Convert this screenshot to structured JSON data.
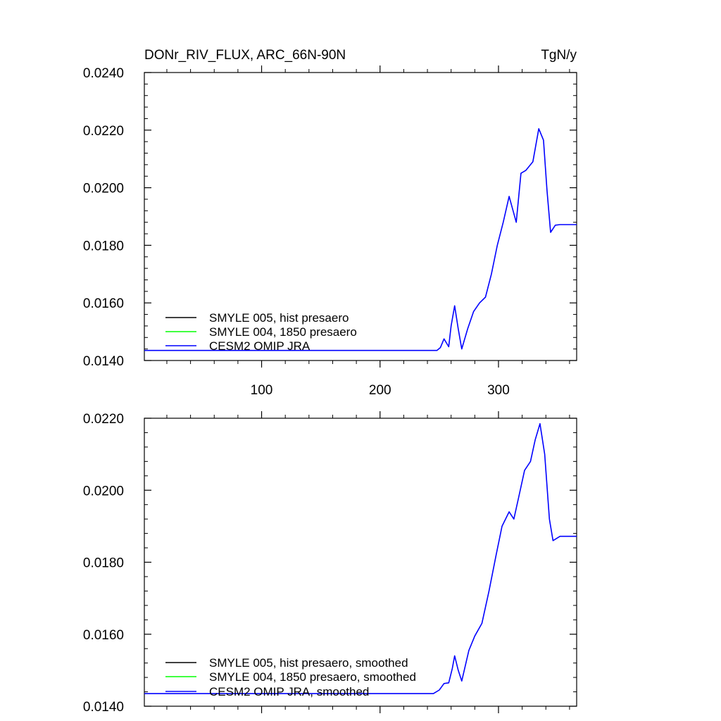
{
  "chart_data": [
    {
      "type": "line",
      "title": "DONr_RIV_FLUX, ARC_66N-90N",
      "units": "TgN/y",
      "xlim": [
        1,
        366
      ],
      "ylim": [
        0.014,
        0.024
      ],
      "xticks": [
        100,
        200,
        300
      ],
      "xtick_labels": [
        "100",
        "200",
        "300"
      ],
      "yticks": [
        0.014,
        0.016,
        0.018,
        0.02,
        0.022,
        0.024
      ],
      "ytick_labels": [
        "0.0140",
        "0.0160",
        "0.0180",
        "0.0200",
        "0.0220",
        "0.0240"
      ],
      "legend_position": "bottom-left",
      "x": [
        1,
        100,
        200,
        248,
        251,
        254,
        258,
        260,
        263,
        266,
        269,
        274,
        279,
        284,
        289,
        294,
        299,
        304,
        309,
        315,
        319,
        323,
        329,
        334,
        338,
        341,
        344,
        348,
        352,
        358,
        366
      ],
      "series": [
        {
          "name": "SMYLE 005, hist presaero",
          "color": "#000000",
          "values": null
        },
        {
          "name": "SMYLE 004, 1850 presaero",
          "color": "#00ff00",
          "values": null
        },
        {
          "name": "CESM2 OMIP JRA",
          "color": "#0000ff",
          "values": [
            0.01435,
            0.01435,
            0.01435,
            0.01435,
            0.01445,
            0.01475,
            0.01448,
            0.0152,
            0.0159,
            0.0151,
            0.0144,
            0.0151,
            0.0157,
            0.016,
            0.0162,
            0.017,
            0.018,
            0.0188,
            0.0197,
            0.0188,
            0.0205,
            0.0206,
            0.0209,
            0.02205,
            0.02165,
            0.0199,
            0.01845,
            0.0187,
            0.01872,
            0.01872,
            0.01872
          ]
        }
      ]
    },
    {
      "type": "line",
      "title": "",
      "units": "",
      "xlim": [
        1,
        366
      ],
      "ylim": [
        0.014,
        0.022
      ],
      "xticks": [
        100,
        200,
        300
      ],
      "xtick_labels": [],
      "yticks": [
        0.014,
        0.016,
        0.018,
        0.02,
        0.022
      ],
      "ytick_labels": [
        "0.0140",
        "0.0160",
        "0.0180",
        "0.0200",
        "0.0220"
      ],
      "legend_position": "bottom-left",
      "x": [
        1,
        100,
        200,
        245,
        250,
        254,
        258,
        261,
        263,
        266,
        269,
        275,
        280,
        286,
        292,
        298,
        303,
        309,
        313,
        317,
        322,
        327,
        331,
        335,
        339,
        343,
        346,
        352,
        358,
        366
      ],
      "series": [
        {
          "name": "SMYLE 005, hist presaero, smoothed",
          "color": "#000000",
          "values": null
        },
        {
          "name": "SMYLE 004, 1850 presaero, smoothed",
          "color": "#00ff00",
          "values": null
        },
        {
          "name": "CESM2 OMIP JRA, smoothed",
          "color": "#0000ff",
          "values": [
            0.01435,
            0.01435,
            0.01435,
            0.01435,
            0.01445,
            0.01463,
            0.01465,
            0.01505,
            0.0154,
            0.015,
            0.0147,
            0.01555,
            0.01595,
            0.0163,
            0.0172,
            0.0182,
            0.019,
            0.0194,
            0.0192,
            0.0198,
            0.02055,
            0.0208,
            0.0214,
            0.02185,
            0.021,
            0.0192,
            0.0186,
            0.01872,
            0.01872,
            0.01872
          ]
        }
      ]
    }
  ]
}
